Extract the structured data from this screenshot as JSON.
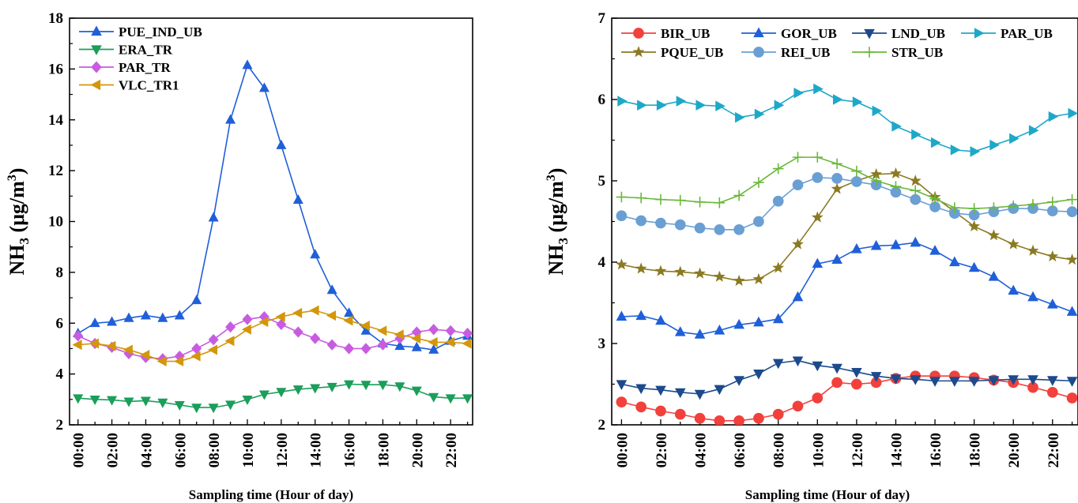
{
  "chart_data": [
    {
      "type": "line",
      "xlabel": "Sampling time (Hour of day)",
      "ylabel_main": "NH",
      "ylabel_sub": "3",
      "ylabel_unit_open": " (μg/m",
      "ylabel_unit_sup": "3",
      "ylabel_unit_close": ")",
      "x_tick_labels": [
        "00:00",
        "02:00",
        "04:00",
        "06:00",
        "08:00",
        "10:00",
        "12:00",
        "14:00",
        "16:00",
        "18:00",
        "20:00",
        "22:00"
      ],
      "y_ticks": [
        2,
        4,
        6,
        8,
        10,
        12,
        14,
        16,
        18
      ],
      "ylim": [
        2,
        18
      ],
      "xlim": [
        -0.5,
        23.3
      ],
      "grid": false,
      "legend_position": "top-left",
      "x": [
        0,
        1,
        2,
        3,
        4,
        5,
        6,
        7,
        8,
        9,
        10,
        11,
        12,
        13,
        14,
        15,
        16,
        17,
        18,
        19,
        20,
        21,
        22,
        23
      ],
      "series": [
        {
          "name": "PUE_IND_UB",
          "color": "#1f5fd8",
          "marker": "triangle-up",
          "values": [
            5.6,
            6.0,
            6.05,
            6.2,
            6.3,
            6.2,
            6.3,
            6.9,
            10.15,
            14.0,
            16.15,
            15.25,
            13.0,
            10.85,
            8.7,
            7.3,
            6.4,
            5.7,
            5.2,
            5.1,
            5.05,
            4.95,
            5.3,
            5.5
          ]
        },
        {
          "name": "ERA_TR",
          "color": "#1a9e5a",
          "marker": "triangle-down",
          "values": [
            3.05,
            3.0,
            2.98,
            2.92,
            2.95,
            2.88,
            2.78,
            2.68,
            2.68,
            2.8,
            3.0,
            3.2,
            3.3,
            3.4,
            3.45,
            3.5,
            3.6,
            3.58,
            3.58,
            3.52,
            3.35,
            3.1,
            3.05,
            3.05
          ]
        },
        {
          "name": "PAR_TR",
          "color": "#c85ce0",
          "marker": "diamond",
          "values": [
            5.5,
            5.2,
            5.05,
            4.8,
            4.65,
            4.6,
            4.7,
            5.0,
            5.35,
            5.85,
            6.15,
            6.25,
            5.95,
            5.65,
            5.4,
            5.15,
            5.0,
            5.0,
            5.15,
            5.4,
            5.65,
            5.75,
            5.7,
            5.6
          ]
        },
        {
          "name": "VLC_TR1",
          "color": "#d4960a",
          "marker": "triangle-left",
          "values": [
            5.15,
            5.2,
            5.1,
            4.95,
            4.75,
            4.5,
            4.5,
            4.7,
            4.95,
            5.3,
            5.75,
            6.05,
            6.25,
            6.4,
            6.5,
            6.3,
            6.1,
            5.9,
            5.7,
            5.55,
            5.4,
            5.25,
            5.25,
            5.2
          ]
        }
      ]
    },
    {
      "type": "line",
      "xlabel": "Sampling time (Hour of day)",
      "ylabel_main": "NH",
      "ylabel_sub": "3",
      "ylabel_unit_open": " (μg/m",
      "ylabel_unit_sup": "3",
      "ylabel_unit_close": ")",
      "x_tick_labels": [
        "00:00",
        "02:00",
        "04:00",
        "06:00",
        "08:00",
        "10:00",
        "12:00",
        "14:00",
        "16:00",
        "18:00",
        "20:00",
        "22:00"
      ],
      "y_ticks": [
        2,
        3,
        4,
        5,
        6,
        7
      ],
      "ylim": [
        2,
        7
      ],
      "xlim": [
        -0.5,
        23.3
      ],
      "grid": false,
      "legend_position": "top",
      "x": [
        0,
        1,
        2,
        3,
        4,
        5,
        6,
        7,
        8,
        9,
        10,
        11,
        12,
        13,
        14,
        15,
        16,
        17,
        18,
        19,
        20,
        21,
        22,
        23
      ],
      "series": [
        {
          "name": "BIR_UB",
          "color": "#f2403c",
          "marker": "circle",
          "values": [
            2.28,
            2.22,
            2.17,
            2.13,
            2.08,
            2.05,
            2.05,
            2.08,
            2.13,
            2.23,
            2.33,
            2.52,
            2.5,
            2.52,
            2.57,
            2.6,
            2.6,
            2.6,
            2.58,
            2.55,
            2.52,
            2.46,
            2.4,
            2.33
          ]
        },
        {
          "name": "GOR_UB",
          "color": "#1f5fd8",
          "marker": "triangle-up",
          "values": [
            3.33,
            3.34,
            3.28,
            3.14,
            3.11,
            3.16,
            3.23,
            3.26,
            3.3,
            3.57,
            3.98,
            4.03,
            4.16,
            4.2,
            4.21,
            4.24,
            4.14,
            4.0,
            3.93,
            3.82,
            3.65,
            3.57,
            3.48,
            3.39
          ]
        },
        {
          "name": "LND_UB",
          "color": "#1c4a8c",
          "marker": "triangle-down",
          "values": [
            2.5,
            2.45,
            2.43,
            2.4,
            2.38,
            2.44,
            2.55,
            2.63,
            2.76,
            2.79,
            2.73,
            2.7,
            2.65,
            2.6,
            2.57,
            2.56,
            2.54,
            2.54,
            2.54,
            2.55,
            2.56,
            2.56,
            2.55,
            2.54
          ]
        },
        {
          "name": "PAR_UB",
          "color": "#1ea8c8",
          "marker": "triangle-right",
          "values": [
            5.98,
            5.93,
            5.93,
            5.98,
            5.93,
            5.92,
            5.78,
            5.82,
            5.93,
            6.08,
            6.13,
            6.0,
            5.97,
            5.86,
            5.67,
            5.57,
            5.47,
            5.38,
            5.36,
            5.44,
            5.52,
            5.62,
            5.79,
            5.83
          ]
        },
        {
          "name": "PQUE_UB",
          "color": "#8a7a22",
          "marker": "star",
          "values": [
            3.97,
            3.92,
            3.89,
            3.88,
            3.86,
            3.82,
            3.77,
            3.79,
            3.93,
            4.22,
            4.55,
            4.9,
            5.0,
            5.08,
            5.09,
            5.0,
            4.8,
            4.62,
            4.44,
            4.33,
            4.22,
            4.14,
            4.07,
            4.03
          ]
        },
        {
          "name": "REI_UB",
          "color": "#6a9fd4",
          "marker": "circle",
          "values": [
            4.57,
            4.51,
            4.48,
            4.46,
            4.42,
            4.4,
            4.4,
            4.5,
            4.75,
            4.95,
            5.04,
            5.03,
            4.99,
            4.95,
            4.86,
            4.77,
            4.68,
            4.6,
            4.58,
            4.62,
            4.66,
            4.66,
            4.63,
            4.62
          ]
        },
        {
          "name": "STR_UB",
          "color": "#6ab83a",
          "marker": "plus",
          "values": [
            4.8,
            4.79,
            4.77,
            4.76,
            4.74,
            4.73,
            4.82,
            4.98,
            5.15,
            5.29,
            5.29,
            5.21,
            5.12,
            5.0,
            4.93,
            4.88,
            4.78,
            4.67,
            4.66,
            4.67,
            4.69,
            4.71,
            4.74,
            4.77
          ]
        }
      ]
    }
  ]
}
